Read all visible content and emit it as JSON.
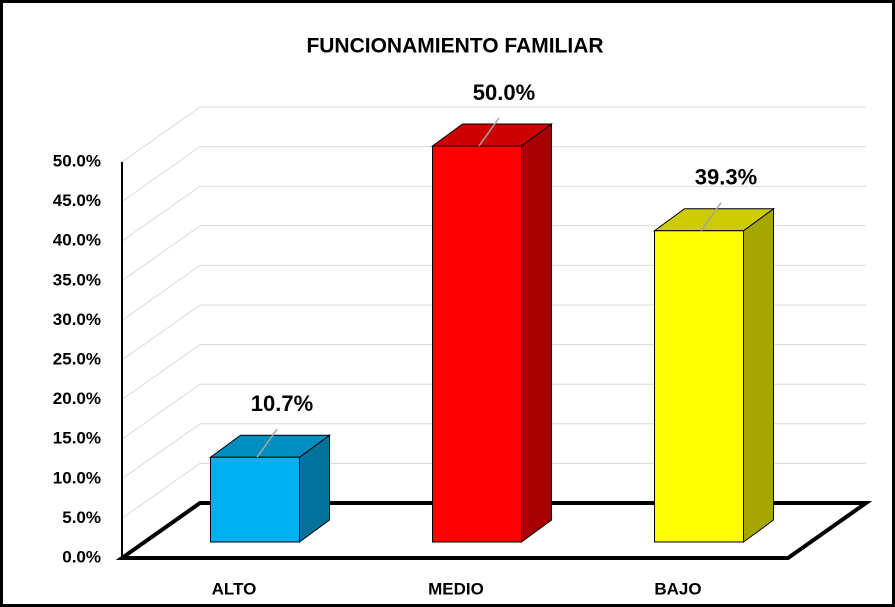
{
  "chart_data": {
    "type": "bar3d",
    "title": "FUNCIONAMIENTO FAMILIAR",
    "categories": [
      "ALTO",
      "MEDIO",
      "BAJO"
    ],
    "values": [
      10.7,
      50.0,
      39.3
    ],
    "value_labels": [
      "10.7%",
      "50.0%",
      "39.3%"
    ],
    "colors": [
      "#00b0f0",
      "#ff0000",
      "#ffff00"
    ],
    "ylim": [
      0,
      50
    ],
    "yticks": [
      {
        "value": 0,
        "label": "0.0%"
      },
      {
        "value": 5,
        "label": "5.0%"
      },
      {
        "value": 10,
        "label": "10.0%"
      },
      {
        "value": 15,
        "label": "15.0%"
      },
      {
        "value": 20,
        "label": "20.0%"
      },
      {
        "value": 25,
        "label": "25.0%"
      },
      {
        "value": 30,
        "label": "30.0%"
      },
      {
        "value": 35,
        "label": "35.0%"
      },
      {
        "value": 40,
        "label": "40.0%"
      },
      {
        "value": 45,
        "label": "45.0%"
      },
      {
        "value": 50,
        "label": "50.0%"
      }
    ],
    "grid": true
  }
}
